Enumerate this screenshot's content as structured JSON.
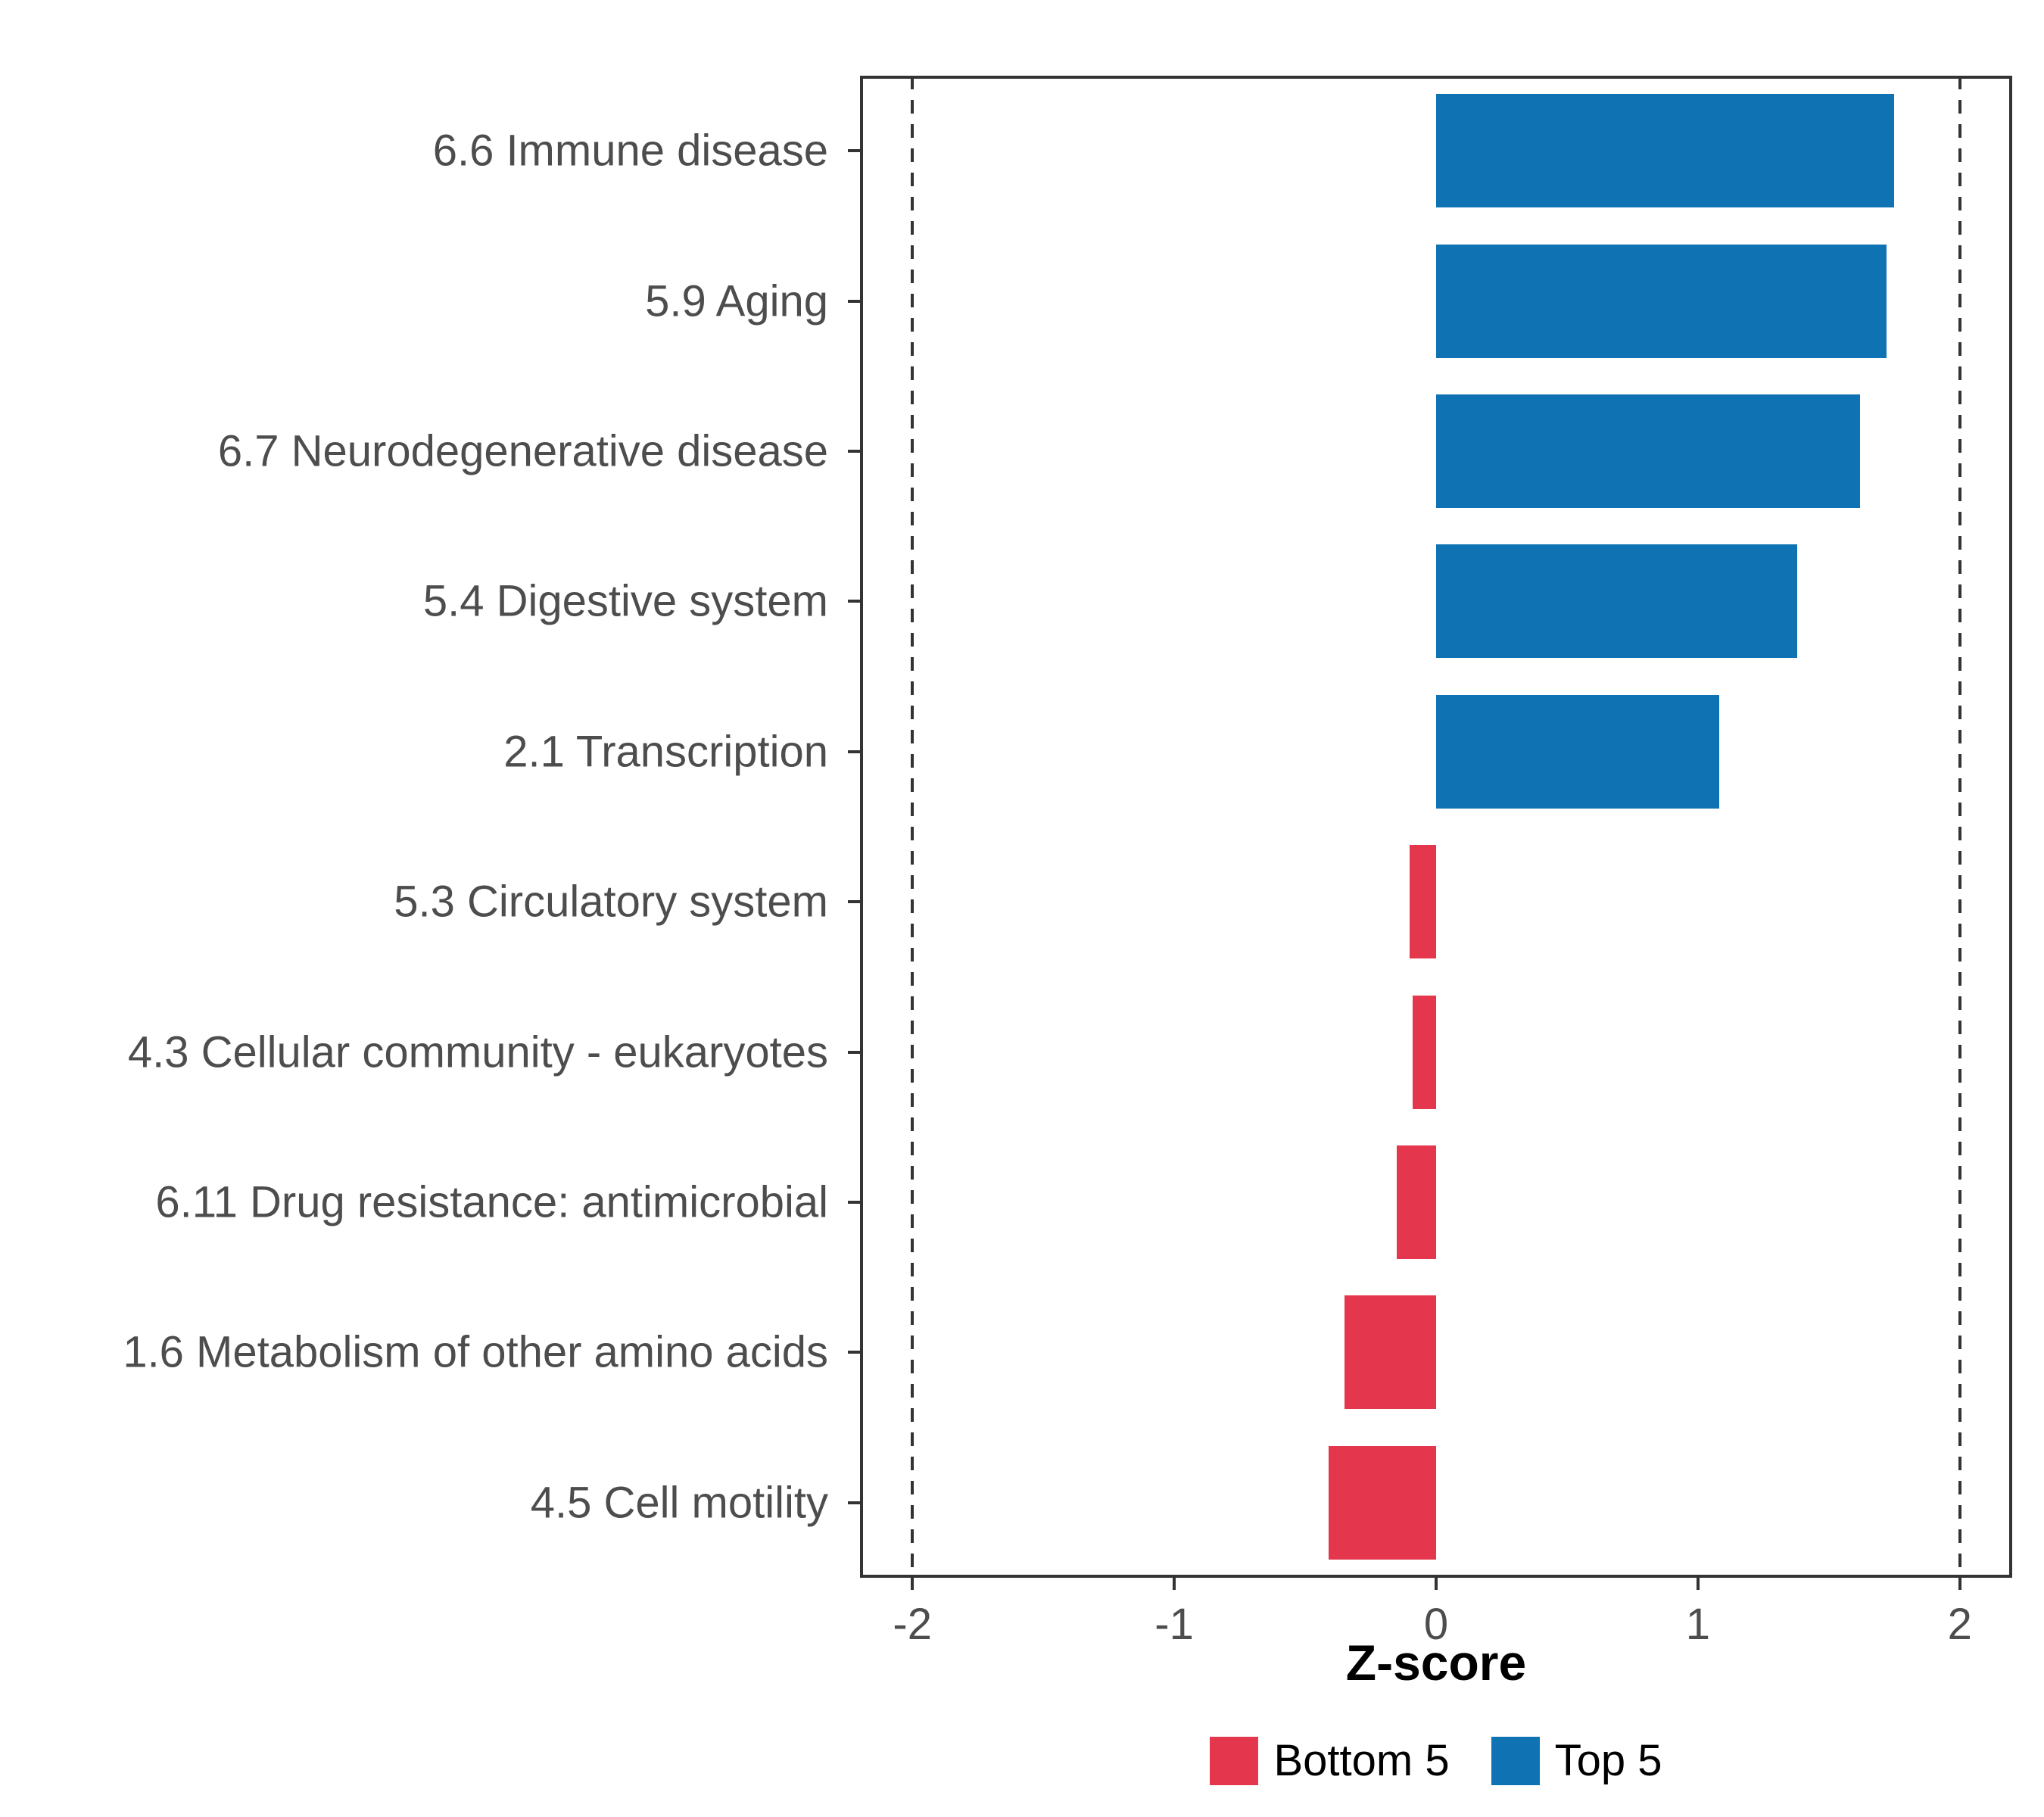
{
  "chart_data": {
    "type": "bar",
    "orientation": "horizontal",
    "title": "",
    "xlabel": "Z-score",
    "ylabel": "",
    "xlim": [
      -2.2,
      2.2
    ],
    "x_ticks": [
      -2,
      -1,
      0,
      1,
      2
    ],
    "reference_lines": [
      -2,
      2
    ],
    "grid": false,
    "legend_position": "bottom",
    "categories": [
      "6.6 Immune disease",
      "5.9 Aging",
      "6.7 Neurodegenerative disease",
      "5.4 Digestive system",
      "2.1 Transcription",
      "5.3 Circulatory system",
      "4.3 Cellular community - eukaryotes",
      "6.11 Drug resistance: antimicrobial",
      "1.6 Metabolism of other amino acids",
      "4.5 Cell motility"
    ],
    "values": [
      1.75,
      1.72,
      1.62,
      1.38,
      1.08,
      -0.1,
      -0.09,
      -0.15,
      -0.35,
      -0.41
    ],
    "groups": [
      "Top 5",
      "Top 5",
      "Top 5",
      "Top 5",
      "Top 5",
      "Bottom 5",
      "Bottom 5",
      "Bottom 5",
      "Bottom 5",
      "Bottom 5"
    ],
    "colors": {
      "Top 5": "#0F72B2",
      "Bottom 5": "#E4374D"
    },
    "legend": [
      {
        "label": "Bottom 5",
        "color": "#E4374D"
      },
      {
        "label": "Top 5",
        "color": "#0F72B2"
      }
    ],
    "text_color": "#4d4d4d",
    "border_color": "#333333"
  }
}
